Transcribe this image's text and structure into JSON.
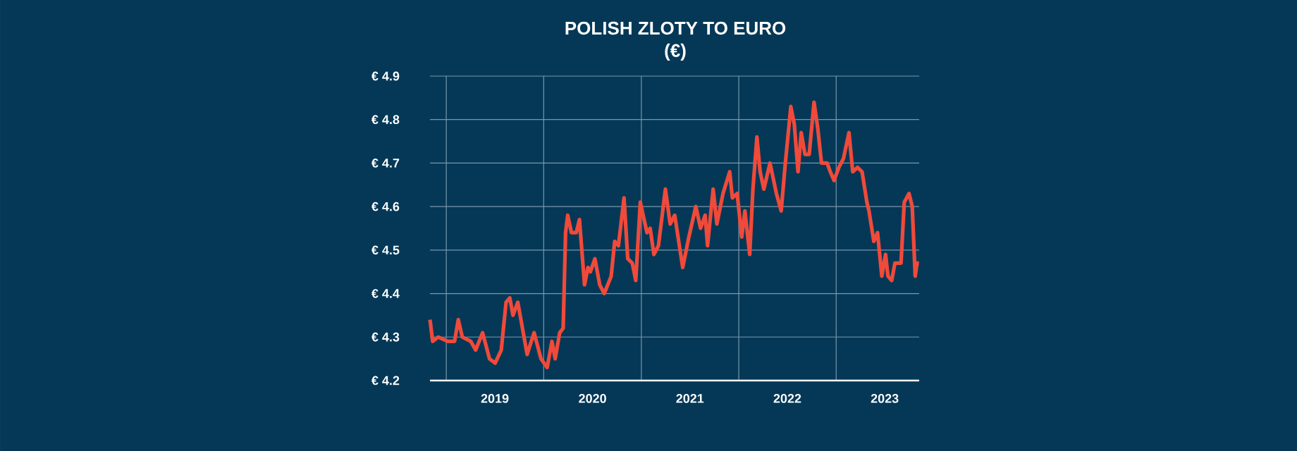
{
  "chart_data": {
    "type": "line",
    "title": "POLISH ZLOTY TO EURO",
    "subtitle": "(€)",
    "x": [
      "2018-11-01",
      "2018-11-11",
      "2018-12-02",
      "2019-01-06",
      "2019-02-01",
      "2019-02-15",
      "2019-03-02",
      "2019-04-03",
      "2019-04-21",
      "2019-05-17",
      "2019-06-12",
      "2019-07-03",
      "2019-07-26",
      "2019-08-13",
      "2019-08-27",
      "2019-09-08",
      "2019-09-26",
      "2019-10-31",
      "2019-11-26",
      "2019-12-22",
      "2020-01-14",
      "2020-02-01",
      "2020-02-13",
      "2020-03-01",
      "2020-03-14",
      "2020-03-23",
      "2020-03-31",
      "2020-04-14",
      "2020-05-02",
      "2020-05-14",
      "2020-06-02",
      "2020-06-15",
      "2020-06-24",
      "2020-07-11",
      "2020-07-29",
      "2020-08-15",
      "2020-09-10",
      "2020-09-23",
      "2020-10-07",
      "2020-10-28",
      "2020-11-11",
      "2020-11-28",
      "2020-12-11",
      "2020-12-28",
      "2021-01-22",
      "2021-02-03",
      "2021-02-17",
      "2021-03-06",
      "2021-04-01",
      "2021-04-19",
      "2021-05-06",
      "2021-06-05",
      "2021-06-28",
      "2021-07-24",
      "2021-08-11",
      "2021-08-28",
      "2021-09-06",
      "2021-09-27",
      "2021-10-11",
      "2021-11-03",
      "2021-11-28",
      "2021-12-08",
      "2021-12-26",
      "2022-01-12",
      "2022-01-24",
      "2022-02-11",
      "2022-02-23",
      "2022-03-10",
      "2022-03-22",
      "2022-04-05",
      "2022-04-28",
      "2022-05-22",
      "2022-06-09",
      "2022-06-23",
      "2022-07-15",
      "2022-07-28",
      "2022-08-11",
      "2022-08-23",
      "2022-09-06",
      "2022-09-22",
      "2022-10-10",
      "2022-10-24",
      "2022-11-07",
      "2022-11-28",
      "2022-12-10",
      "2022-12-24",
      "2023-01-11",
      "2023-01-28",
      "2023-02-18",
      "2023-03-04",
      "2023-03-22",
      "2023-04-08",
      "2023-04-26",
      "2023-05-04",
      "2023-05-22",
      "2023-06-05",
      "2023-06-21",
      "2023-07-05",
      "2023-07-14",
      "2023-07-28",
      "2023-08-09",
      "2023-09-01",
      "2023-09-13",
      "2023-10-01",
      "2023-10-13",
      "2023-10-24",
      "2023-10-31",
      "2023-11-07"
    ],
    "series": [
      {
        "color": "#f04a3a",
        "values": [
          4.34,
          4.29,
          4.3,
          4.29,
          4.29,
          4.34,
          4.3,
          4.29,
          4.27,
          4.31,
          4.25,
          4.24,
          4.27,
          4.38,
          4.39,
          4.35,
          4.38,
          4.26,
          4.31,
          4.25,
          4.23,
          4.29,
          4.25,
          4.31,
          4.32,
          4.54,
          4.58,
          4.54,
          4.54,
          4.57,
          4.42,
          4.46,
          4.45,
          4.48,
          4.42,
          4.4,
          4.44,
          4.52,
          4.51,
          4.62,
          4.48,
          4.47,
          4.43,
          4.61,
          4.54,
          4.55,
          4.49,
          4.51,
          4.64,
          4.56,
          4.58,
          4.46,
          4.53,
          4.6,
          4.55,
          4.58,
          4.51,
          4.64,
          4.56,
          4.63,
          4.68,
          4.62,
          4.63,
          4.53,
          4.59,
          4.49,
          4.64,
          4.76,
          4.68,
          4.64,
          4.7,
          4.63,
          4.59,
          4.69,
          4.83,
          4.79,
          4.68,
          4.77,
          4.72,
          4.72,
          4.84,
          4.78,
          4.7,
          4.7,
          4.68,
          4.66,
          4.69,
          4.71,
          4.77,
          4.68,
          4.69,
          4.68,
          4.61,
          4.59,
          4.52,
          4.54,
          4.44,
          4.49,
          4.44,
          4.43,
          4.47,
          4.47,
          4.61,
          4.63,
          4.6,
          4.44,
          4.47,
          4.47
        ]
      }
    ],
    "xlim": [
      "2018-11-01",
      "2023-11-08"
    ],
    "xticks": [
      {
        "value": "2019-01-01",
        "label": null
      },
      {
        "value": "2020-01-01",
        "label": null
      },
      {
        "value": "2021-01-01",
        "label": null
      },
      {
        "value": "2022-01-01",
        "label": null
      },
      {
        "value": "2023-01-01",
        "label": null
      },
      {
        "value": "2019-07-02",
        "label": "2019"
      },
      {
        "value": "2020-07-02",
        "label": "2020"
      },
      {
        "value": "2021-07-02",
        "label": "2021"
      },
      {
        "value": "2022-07-02",
        "label": "2022"
      },
      {
        "value": "2023-07-02",
        "label": "2023"
      }
    ],
    "ylim": [
      4.2,
      4.9
    ],
    "yticks": [
      {
        "value": 4.2,
        "label": "€ 4.2"
      },
      {
        "value": 4.3,
        "label": "€ 4.3"
      },
      {
        "value": 4.4,
        "label": "€ 4.4"
      },
      {
        "value": 4.5,
        "label": "€ 4.5"
      },
      {
        "value": 4.6,
        "label": "€ 4.6"
      },
      {
        "value": 4.7,
        "label": "€ 4.7"
      },
      {
        "value": 4.8,
        "label": "€ 4.8"
      },
      {
        "value": 4.9,
        "label": "€ 4.9"
      }
    ],
    "grid": true,
    "marker": "none",
    "line_style": "solid"
  }
}
